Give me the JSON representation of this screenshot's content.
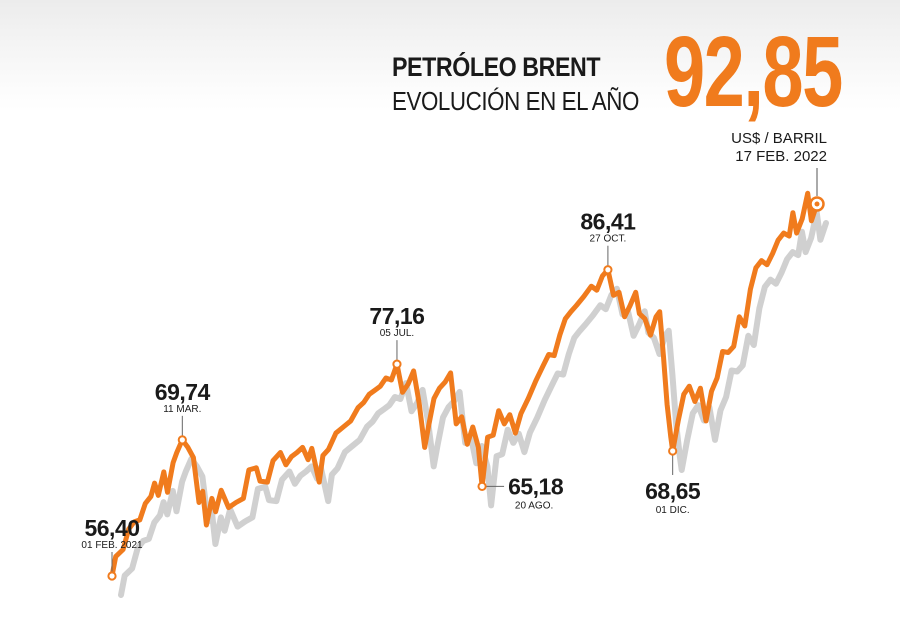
{
  "header": {
    "title": "PETRÓLEO BRENT",
    "subtitle": "EVOLUCIÓN EN EL AÑO",
    "current_value": "92,85",
    "unit": "US$ / BARRIL",
    "current_date": "17  FEB. 2022"
  },
  "colors": {
    "line": "#f07b1d",
    "shadow": "#c8c8c8",
    "text": "#1a1a1a",
    "marker_fill": "#ffffff"
  },
  "chart_data": {
    "type": "line",
    "x_axis": "date",
    "x_range": [
      "2021-02-01",
      "2022-02-17"
    ],
    "ylim": [
      54,
      95
    ],
    "series": [
      {
        "values": [
          [
            "2021-02-01",
            56.4
          ],
          [
            "2021-02-03",
            58.3
          ],
          [
            "2021-02-07",
            59.0
          ],
          [
            "2021-02-10",
            61.0
          ],
          [
            "2021-02-13",
            61.7
          ],
          [
            "2021-02-16",
            61.9
          ],
          [
            "2021-02-19",
            63.5
          ],
          [
            "2021-02-22",
            64.2
          ],
          [
            "2021-02-24",
            65.5
          ],
          [
            "2021-02-26",
            64.3
          ],
          [
            "2021-03-01",
            66.6
          ],
          [
            "2021-03-03",
            64.6
          ],
          [
            "2021-03-06",
            67.5
          ],
          [
            "2021-03-08",
            68.5
          ],
          [
            "2021-03-11",
            69.74
          ],
          [
            "2021-03-14",
            69.0
          ],
          [
            "2021-03-17",
            68.0
          ],
          [
            "2021-03-20",
            63.6
          ],
          [
            "2021-03-22",
            64.7
          ],
          [
            "2021-03-24",
            61.4
          ],
          [
            "2021-03-27",
            64.0
          ],
          [
            "2021-03-29",
            62.7
          ],
          [
            "2021-04-01",
            64.8
          ],
          [
            "2021-04-05",
            63.1
          ],
          [
            "2021-04-09",
            63.6
          ],
          [
            "2021-04-13",
            64.0
          ],
          [
            "2021-04-16",
            66.8
          ],
          [
            "2021-04-20",
            67.0
          ],
          [
            "2021-04-22",
            65.7
          ],
          [
            "2021-04-26",
            65.6
          ],
          [
            "2021-04-29",
            67.7
          ],
          [
            "2021-05-03",
            68.5
          ],
          [
            "2021-05-06",
            67.3
          ],
          [
            "2021-05-09",
            68.1
          ],
          [
            "2021-05-12",
            68.5
          ],
          [
            "2021-05-15",
            69.0
          ],
          [
            "2021-05-18",
            67.8
          ],
          [
            "2021-05-20",
            68.9
          ],
          [
            "2021-05-24",
            65.6
          ],
          [
            "2021-05-26",
            68.2
          ],
          [
            "2021-05-29",
            68.8
          ],
          [
            "2021-06-02",
            70.4
          ],
          [
            "2021-06-06",
            71.0
          ],
          [
            "2021-06-10",
            71.6
          ],
          [
            "2021-06-14",
            72.9
          ],
          [
            "2021-06-17",
            73.4
          ],
          [
            "2021-06-20",
            74.2
          ],
          [
            "2021-06-23",
            74.6
          ],
          [
            "2021-06-26",
            75.0
          ],
          [
            "2021-06-29",
            75.8
          ],
          [
            "2021-07-02",
            75.6
          ],
          [
            "2021-07-05",
            77.16
          ],
          [
            "2021-07-08",
            74.4
          ],
          [
            "2021-07-11",
            75.2
          ],
          [
            "2021-07-14",
            76.5
          ],
          [
            "2021-07-17",
            73.3
          ],
          [
            "2021-07-20",
            69.0
          ],
          [
            "2021-07-22",
            71.0
          ],
          [
            "2021-07-25",
            73.8
          ],
          [
            "2021-07-28",
            74.8
          ],
          [
            "2021-07-31",
            75.4
          ],
          [
            "2021-08-03",
            76.3
          ],
          [
            "2021-08-06",
            71.3
          ],
          [
            "2021-08-09",
            72.0
          ],
          [
            "2021-08-12",
            69.3
          ],
          [
            "2021-08-15",
            71.0
          ],
          [
            "2021-08-18",
            69.0
          ],
          [
            "2021-08-20",
            65.18
          ],
          [
            "2021-08-23",
            70.0
          ],
          [
            "2021-08-26",
            70.2
          ],
          [
            "2021-08-29",
            72.6
          ],
          [
            "2021-09-01",
            71.3
          ],
          [
            "2021-09-04",
            72.2
          ],
          [
            "2021-09-07",
            70.4
          ],
          [
            "2021-09-10",
            72.3
          ],
          [
            "2021-09-14",
            73.8
          ],
          [
            "2021-09-18",
            75.5
          ],
          [
            "2021-09-22",
            77.0
          ],
          [
            "2021-09-25",
            78.1
          ],
          [
            "2021-09-28",
            78.0
          ],
          [
            "2021-10-01",
            80.0
          ],
          [
            "2021-10-04",
            81.6
          ],
          [
            "2021-10-07",
            82.3
          ],
          [
            "2021-10-10",
            82.9
          ],
          [
            "2021-10-14",
            83.8
          ],
          [
            "2021-10-18",
            84.8
          ],
          [
            "2021-10-21",
            84.4
          ],
          [
            "2021-10-24",
            85.8
          ],
          [
            "2021-10-27",
            86.41
          ],
          [
            "2021-10-30",
            83.9
          ],
          [
            "2021-11-02",
            84.2
          ],
          [
            "2021-11-05",
            81.8
          ],
          [
            "2021-11-08",
            82.9
          ],
          [
            "2021-11-11",
            84.2
          ],
          [
            "2021-11-13",
            82.1
          ],
          [
            "2021-11-16",
            81.6
          ],
          [
            "2021-11-19",
            80.0
          ],
          [
            "2021-11-22",
            81.8
          ],
          [
            "2021-11-24",
            82.3
          ],
          [
            "2021-11-26",
            78.0
          ],
          [
            "2021-11-28",
            73.2
          ],
          [
            "2021-11-30",
            70.0
          ],
          [
            "2021-12-01",
            68.65
          ],
          [
            "2021-12-04",
            71.6
          ],
          [
            "2021-12-07",
            74.2
          ],
          [
            "2021-12-10",
            75.0
          ],
          [
            "2021-12-13",
            73.5
          ],
          [
            "2021-12-16",
            74.8
          ],
          [
            "2021-12-19",
            71.6
          ],
          [
            "2021-12-22",
            74.5
          ],
          [
            "2021-12-25",
            75.8
          ],
          [
            "2021-12-28",
            78.4
          ],
          [
            "2021-12-31",
            78.3
          ],
          [
            "2022-01-03",
            78.9
          ],
          [
            "2022-01-06",
            81.8
          ],
          [
            "2022-01-09",
            80.9
          ],
          [
            "2022-01-12",
            84.5
          ],
          [
            "2022-01-15",
            86.6
          ],
          [
            "2022-01-18",
            87.3
          ],
          [
            "2022-01-21",
            86.9
          ],
          [
            "2022-01-24",
            88.0
          ],
          [
            "2022-01-27",
            89.3
          ],
          [
            "2022-01-30",
            90.0
          ],
          [
            "2022-02-02",
            89.7
          ],
          [
            "2022-02-04",
            92.0
          ],
          [
            "2022-02-06",
            90.0
          ],
          [
            "2022-02-09",
            91.4
          ],
          [
            "2022-02-12",
            93.9
          ],
          [
            "2022-02-14",
            91.2
          ],
          [
            "2022-02-17",
            92.85
          ]
        ]
      }
    ],
    "annotations": [
      {
        "date": "2021-02-01",
        "value": 56.4,
        "label": "56,40",
        "sublabel": "01 FEB. 2021",
        "anchor": "above"
      },
      {
        "date": "2021-03-11",
        "value": 69.74,
        "label": "69,74",
        "sublabel": "11 MAR.",
        "anchor": "above"
      },
      {
        "date": "2021-07-05",
        "value": 77.16,
        "label": "77,16",
        "sublabel": "05 JUL.",
        "anchor": "above"
      },
      {
        "date": "2021-08-20",
        "value": 65.18,
        "label": "65,18",
        "sublabel": "20 AGO.",
        "anchor": "right"
      },
      {
        "date": "2021-10-27",
        "value": 86.41,
        "label": "86,41",
        "sublabel": "27 OCT.",
        "anchor": "above"
      },
      {
        "date": "2021-12-01",
        "value": 68.65,
        "label": "68,65",
        "sublabel": "01 DIC.",
        "anchor": "below"
      },
      {
        "date": "2022-02-17",
        "value": 92.85,
        "label": "",
        "sublabel": "",
        "anchor": "highlight"
      }
    ],
    "grid": false,
    "legend": "none"
  }
}
